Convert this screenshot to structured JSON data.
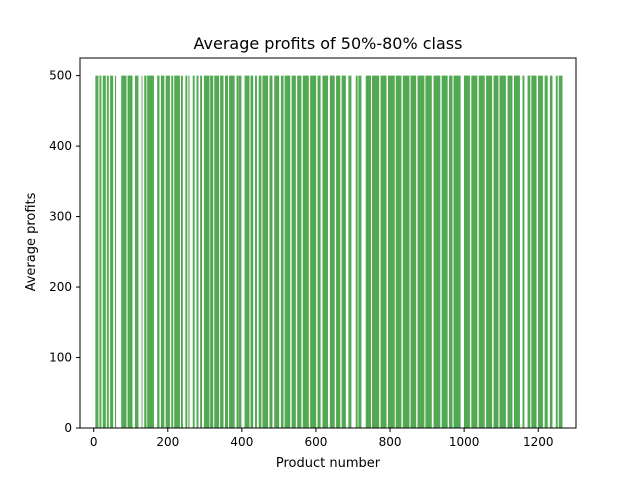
{
  "chart_data": {
    "type": "bar",
    "title": "Average profits of 50%-80% class",
    "xlabel": "Product number",
    "ylabel": "Average profits",
    "xlim": [
      -37,
      1302
    ],
    "ylim": [
      0,
      525
    ],
    "xticks": [
      0,
      200,
      400,
      600,
      800,
      1000,
      1200
    ],
    "yticks": [
      0,
      100,
      200,
      300,
      400,
      500
    ],
    "bar_value": 500,
    "bar_width": 0.8,
    "bar_color": "#008000",
    "grid": false,
    "series": [
      {
        "values_note": "all bars have value 500",
        "x_ranges": [
          [
            5,
            12
          ],
          [
            16,
            20
          ],
          [
            25,
            32
          ],
          [
            36,
            40
          ],
          [
            45,
            52
          ],
          [
            58,
            60
          ],
          [
            75,
            88
          ],
          [
            92,
            104
          ],
          [
            112,
            120
          ],
          [
            130,
            131
          ],
          [
            137,
            142
          ],
          [
            145,
            162
          ],
          [
            172,
            177
          ],
          [
            182,
            190
          ],
          [
            195,
            205
          ],
          [
            210,
            214
          ],
          [
            218,
            232
          ],
          [
            236,
            240
          ],
          [
            248,
            252
          ],
          [
            256,
            258
          ],
          [
            268,
            272
          ],
          [
            278,
            282
          ],
          [
            288,
            292
          ],
          [
            298,
            312
          ],
          [
            315,
            322
          ],
          [
            326,
            338
          ],
          [
            342,
            350
          ],
          [
            355,
            362
          ],
          [
            366,
            380
          ],
          [
            386,
            390
          ],
          [
            392,
            398
          ],
          [
            408,
            420
          ],
          [
            424,
            430
          ],
          [
            436,
            440
          ],
          [
            446,
            452
          ],
          [
            456,
            470
          ],
          [
            475,
            482
          ],
          [
            488,
            500
          ],
          [
            506,
            512
          ],
          [
            516,
            530
          ],
          [
            535,
            545
          ],
          [
            550,
            560
          ],
          [
            565,
            580
          ],
          [
            585,
            600
          ],
          [
            605,
            612
          ],
          [
            618,
            632
          ],
          [
            638,
            650
          ],
          [
            655,
            665
          ],
          [
            670,
            680
          ],
          [
            688,
            695
          ],
          [
            708,
            712
          ],
          [
            715,
            722
          ],
          [
            735,
            748
          ],
          [
            752,
            770
          ],
          [
            775,
            790
          ],
          [
            795,
            812
          ],
          [
            816,
            830
          ],
          [
            835,
            852
          ],
          [
            856,
            870
          ],
          [
            875,
            892
          ],
          [
            896,
            912
          ],
          [
            918,
            935
          ],
          [
            940,
            955
          ],
          [
            960,
            968
          ],
          [
            972,
            990
          ],
          [
            1000,
            1015
          ],
          [
            1020,
            1035
          ],
          [
            1040,
            1055
          ],
          [
            1060,
            1075
          ],
          [
            1080,
            1092
          ],
          [
            1096,
            1112
          ],
          [
            1118,
            1130
          ],
          [
            1135,
            1150
          ],
          [
            1158,
            1162
          ],
          [
            1172,
            1178
          ],
          [
            1182,
            1195
          ],
          [
            1200,
            1212
          ],
          [
            1218,
            1225
          ],
          [
            1232,
            1238
          ],
          [
            1248,
            1252
          ],
          [
            1256,
            1265
          ]
        ]
      }
    ]
  }
}
